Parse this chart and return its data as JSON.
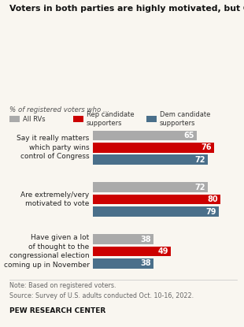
{
  "title": "Voters in both parties are highly motivated, but GOP voters more likely to have given ‘a lot’ of thought to midterms",
  "subtitle": "% of registered voters who ...",
  "legend": [
    {
      "label": "All RVs",
      "color": "#aaaaaa"
    },
    {
      "label": "Rep candidate\nsupporters",
      "color": "#cc0000"
    },
    {
      "label": "Dem candidate\nsupporters",
      "color": "#4a6f8a"
    }
  ],
  "groups": [
    {
      "label": "Say it really matters\nwhich party wins\ncontrol of Congress",
      "values": [
        65,
        76,
        72
      ],
      "colors": [
        "#aaaaaa",
        "#cc0000",
        "#4a6f8a"
      ]
    },
    {
      "label": "Are extremely/very\nmotivated to vote",
      "values": [
        72,
        80,
        79
      ],
      "colors": [
        "#aaaaaa",
        "#cc0000",
        "#4a6f8a"
      ]
    },
    {
      "label": "Have given a lot\nof thought to the\ncongressional election\ncoming up in November",
      "values": [
        38,
        49,
        38
      ],
      "colors": [
        "#aaaaaa",
        "#cc0000",
        "#4a6f8a"
      ]
    }
  ],
  "note": "Note: Based on registered voters.",
  "source": "Source: Survey of U.S. adults conducted Oct. 10-16, 2022.",
  "footer": "PEW RESEARCH CENTER",
  "bg_color": "#f9f6f0"
}
